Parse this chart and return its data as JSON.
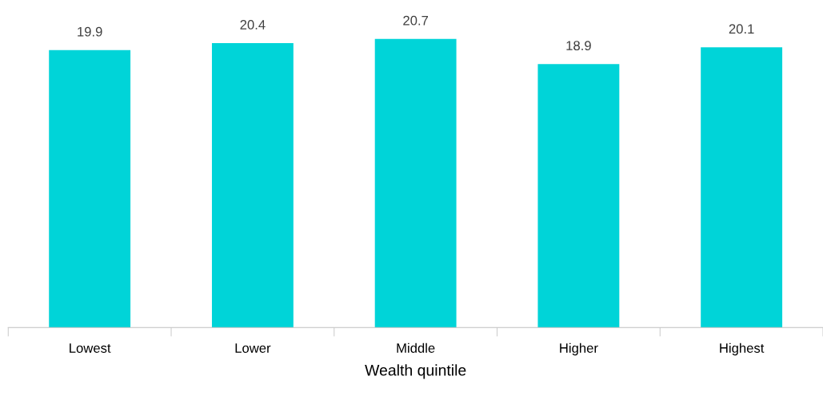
{
  "chart_data": {
    "type": "bar",
    "xlabel": "Wealth quintile",
    "categories": [
      "Lowest",
      "Lower",
      "Middle",
      "Higher",
      "Highest"
    ],
    "values": [
      19.9,
      20.4,
      20.7,
      18.9,
      20.1
    ],
    "color": "#00d4d8",
    "tick_labels": "x",
    "data_labels": true,
    "grid": false,
    "legend": false
  }
}
